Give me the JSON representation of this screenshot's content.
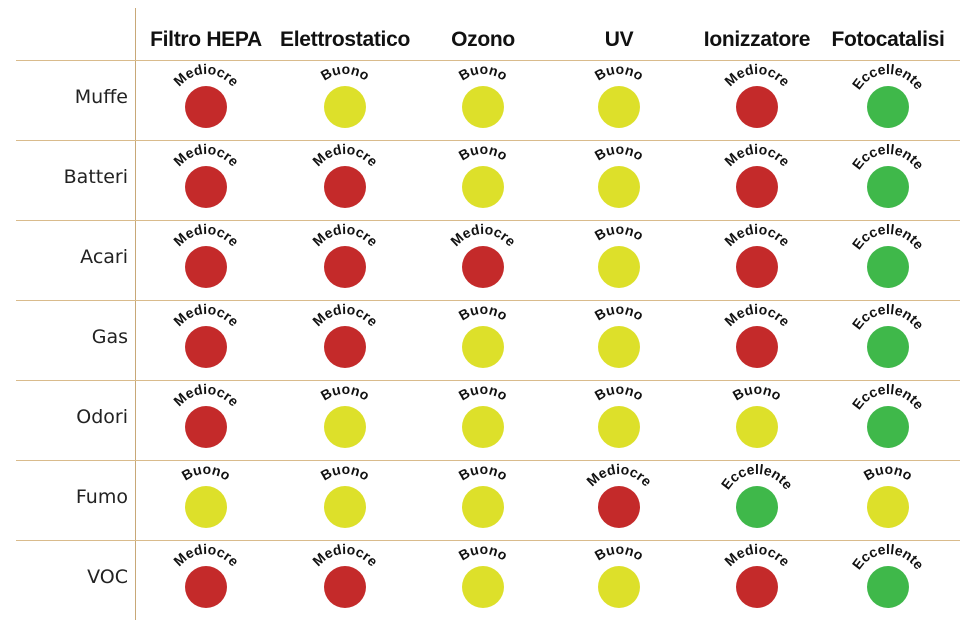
{
  "columns": [
    "Filtro HEPA",
    "Elettrostatico",
    "Ozono",
    "UV",
    "Ionizzatore",
    "Fotocatalisi"
  ],
  "rows": [
    {
      "name": "Muffe",
      "ratings": [
        "Mediocre",
        "Buono",
        "Buono",
        "Buono",
        "Mediocre",
        "Eccellente"
      ]
    },
    {
      "name": "Batteri",
      "ratings": [
        "Mediocre",
        "Mediocre",
        "Buono",
        "Buono",
        "Mediocre",
        "Eccellente"
      ]
    },
    {
      "name": "Acari",
      "ratings": [
        "Mediocre",
        "Mediocre",
        "Mediocre",
        "Buono",
        "Mediocre",
        "Eccellente"
      ]
    },
    {
      "name": "Gas",
      "ratings": [
        "Mediocre",
        "Mediocre",
        "Buono",
        "Buono",
        "Mediocre",
        "Eccellente"
      ]
    },
    {
      "name": "Odori",
      "ratings": [
        "Mediocre",
        "Buono",
        "Buono",
        "Buono",
        "Buono",
        "Eccellente"
      ]
    },
    {
      "name": "Fumo",
      "ratings": [
        "Buono",
        "Buono",
        "Buono",
        "Mediocre",
        "Eccellente",
        "Buono"
      ]
    },
    {
      "name": "VOC",
      "ratings": [
        "Mediocre",
        "Mediocre",
        "Buono",
        "Buono",
        "Mediocre",
        "Eccellente"
      ]
    }
  ],
  "rating_colors": {
    "Mediocre": "#c42a2a",
    "Buono": "#dde02a",
    "Eccellente": "#3fb84a"
  },
  "grid_color": "#d9bb8c"
}
